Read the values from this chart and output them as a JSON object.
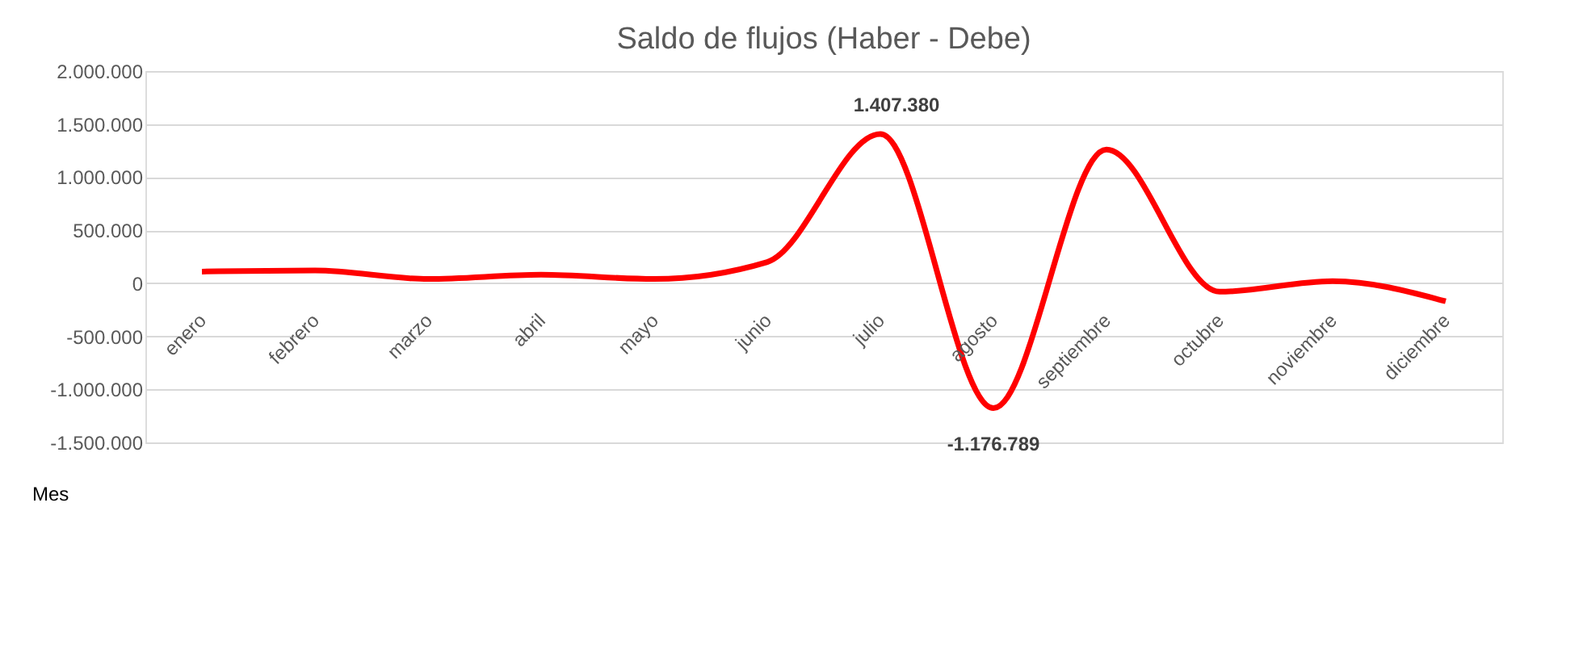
{
  "chart_data": {
    "type": "line",
    "title": "Saldo de flujos (Haber - Debe)",
    "categories": [
      "enero",
      "febrero",
      "marzo",
      "abril",
      "mayo",
      "junio",
      "julio",
      "agosto",
      "septiembre",
      "octubre",
      "noviembre",
      "diciembre"
    ],
    "series": [
      {
        "color": "#ff0000",
        "values": [
          110000,
          120000,
          40000,
          80000,
          40000,
          200000,
          1407380,
          -1176789,
          1260000,
          -80000,
          20000,
          -170000
        ],
        "value_labels": [
          null,
          null,
          null,
          null,
          null,
          null,
          "1.407.380",
          "-1.176.789",
          null,
          null,
          null,
          null
        ]
      }
    ],
    "ylim": [
      -1500000,
      2000000
    ],
    "yticks": [
      {
        "value": -1500000,
        "label": "-1.500.000"
      },
      {
        "value": -1000000,
        "label": "-1.000.000"
      },
      {
        "value": -500000,
        "label": "-500.000"
      },
      0,
      {
        "value": 500000,
        "label": "500.000"
      },
      {
        "value": 1000000,
        "label": "1.000.000"
      },
      {
        "value": 1500000,
        "label": "1.500.000"
      },
      {
        "value": 2000000,
        "label": "2.000.000"
      }
    ],
    "grid": "y",
    "marker": "none",
    "line_style": "solid",
    "annotations": [
      "Mes"
    ]
  }
}
